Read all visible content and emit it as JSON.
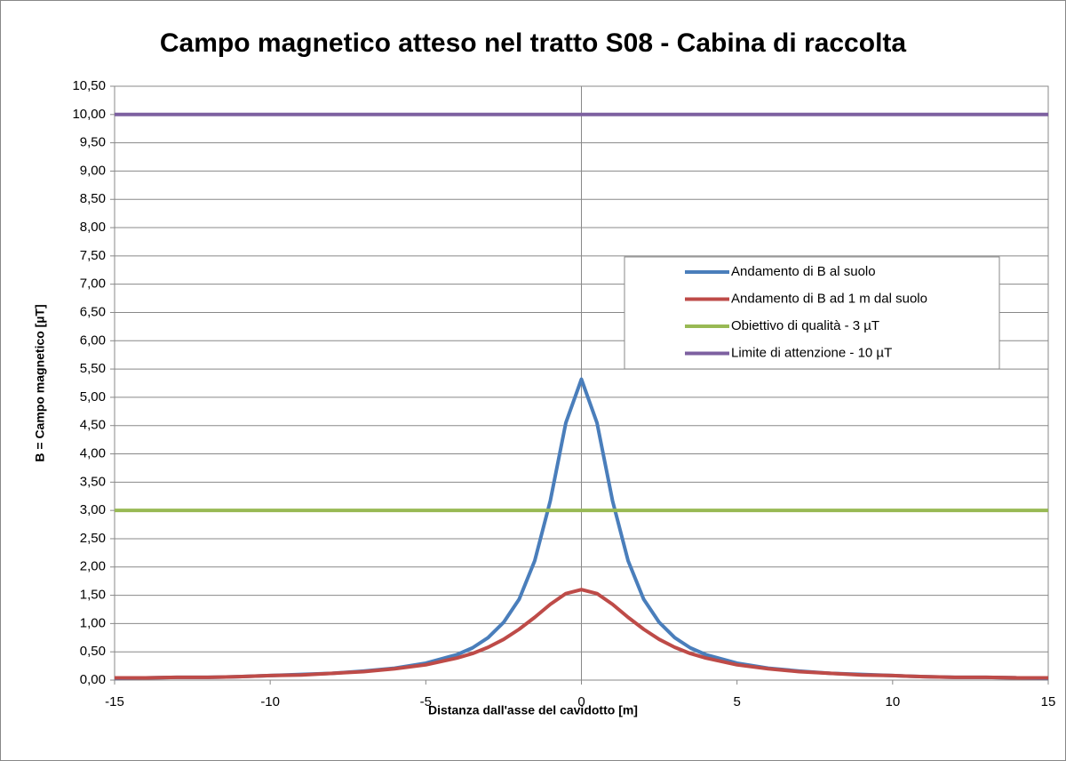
{
  "chart_data": {
    "type": "line",
    "title": "Campo magnetico atteso nel tratto S08 - Cabina di raccolta",
    "xlabel": "Distanza dall'asse del cavidotto [m]",
    "ylabel": "B = Campo magnetico [µT]",
    "xlim": [
      -15,
      15
    ],
    "ylim": [
      0,
      10.5
    ],
    "xticks": [
      -15,
      -10,
      -5,
      0,
      5,
      10,
      15
    ],
    "yticks": [
      {
        "value": 0,
        "label": "0,00"
      },
      {
        "value": 0.5,
        "label": "0,50"
      },
      {
        "value": 1,
        "label": "1,00"
      },
      {
        "value": 1.5,
        "label": "1,50"
      },
      {
        "value": 2,
        "label": "2,00"
      },
      {
        "value": 2.5,
        "label": "2,50"
      },
      {
        "value": 3,
        "label": "3,00"
      },
      {
        "value": 3.5,
        "label": "3,50"
      },
      {
        "value": 4,
        "label": "4,00"
      },
      {
        "value": 4.5,
        "label": "4,50"
      },
      {
        "value": 5,
        "label": "5,00"
      },
      {
        "value": 5.5,
        "label": "5,50"
      },
      {
        "value": 6,
        "label": "6,00"
      },
      {
        "value": 6.5,
        "label": "6,50"
      },
      {
        "value": 7,
        "label": "7,00"
      },
      {
        "value": 7.5,
        "label": "7,50"
      },
      {
        "value": 8,
        "label": "8,00"
      },
      {
        "value": 8.5,
        "label": "8,50"
      },
      {
        "value": 9,
        "label": "9,00"
      },
      {
        "value": 9.5,
        "label": "9,50"
      },
      {
        "value": 10,
        "label": "10,00"
      },
      {
        "value": 10.5,
        "label": "10,50"
      }
    ],
    "grid": true,
    "series": [
      {
        "name": "Andamento di B al suolo",
        "color": "#4a7ebb",
        "x": [
          -15,
          -14,
          -13,
          -12,
          -11,
          -10,
          -9,
          -8,
          -7,
          -6,
          -5,
          -4,
          -3.5,
          -3,
          -2.5,
          -2,
          -1.5,
          -1,
          -0.5,
          0,
          0.5,
          1,
          1.5,
          2,
          2.5,
          3,
          3.5,
          4,
          5,
          6,
          7,
          8,
          9,
          10,
          11,
          12,
          13,
          14,
          15
        ],
        "values": [
          0.03,
          0.04,
          0.05,
          0.05,
          0.06,
          0.08,
          0.1,
          0.12,
          0.16,
          0.21,
          0.3,
          0.45,
          0.57,
          0.75,
          1.02,
          1.43,
          2.11,
          3.17,
          4.55,
          5.32,
          4.55,
          3.17,
          2.11,
          1.43,
          1.02,
          0.75,
          0.57,
          0.45,
          0.3,
          0.21,
          0.16,
          0.12,
          0.1,
          0.08,
          0.06,
          0.05,
          0.05,
          0.04,
          0.03
        ]
      },
      {
        "name": "Andamento di B ad 1 m dal suolo",
        "color": "#be4b48",
        "x": [
          -15,
          -14,
          -13,
          -12,
          -11,
          -10,
          -9,
          -8,
          -7,
          -6,
          -5,
          -4,
          -3.5,
          -3,
          -2.5,
          -2,
          -1.5,
          -1,
          -0.5,
          0,
          0.5,
          1,
          1.5,
          2,
          2.5,
          3,
          3.5,
          4,
          5,
          6,
          7,
          8,
          9,
          10,
          11,
          12,
          13,
          14,
          15
        ],
        "values": [
          0.04,
          0.04,
          0.05,
          0.05,
          0.06,
          0.08,
          0.09,
          0.12,
          0.15,
          0.2,
          0.27,
          0.39,
          0.47,
          0.58,
          0.72,
          0.9,
          1.11,
          1.34,
          1.53,
          1.6,
          1.53,
          1.34,
          1.11,
          0.9,
          0.72,
          0.58,
          0.47,
          0.39,
          0.27,
          0.2,
          0.15,
          0.12,
          0.09,
          0.08,
          0.06,
          0.05,
          0.05,
          0.04,
          0.04
        ]
      },
      {
        "name": "Obiettivo di qualità - 3 µT",
        "color": "#98b954",
        "x": [
          -15,
          15
        ],
        "values": [
          3,
          3
        ]
      },
      {
        "name": "Limite di attenzione - 10 µT",
        "color": "#7d60a0",
        "x": [
          -15,
          15
        ],
        "values": [
          10,
          10
        ]
      }
    ]
  }
}
